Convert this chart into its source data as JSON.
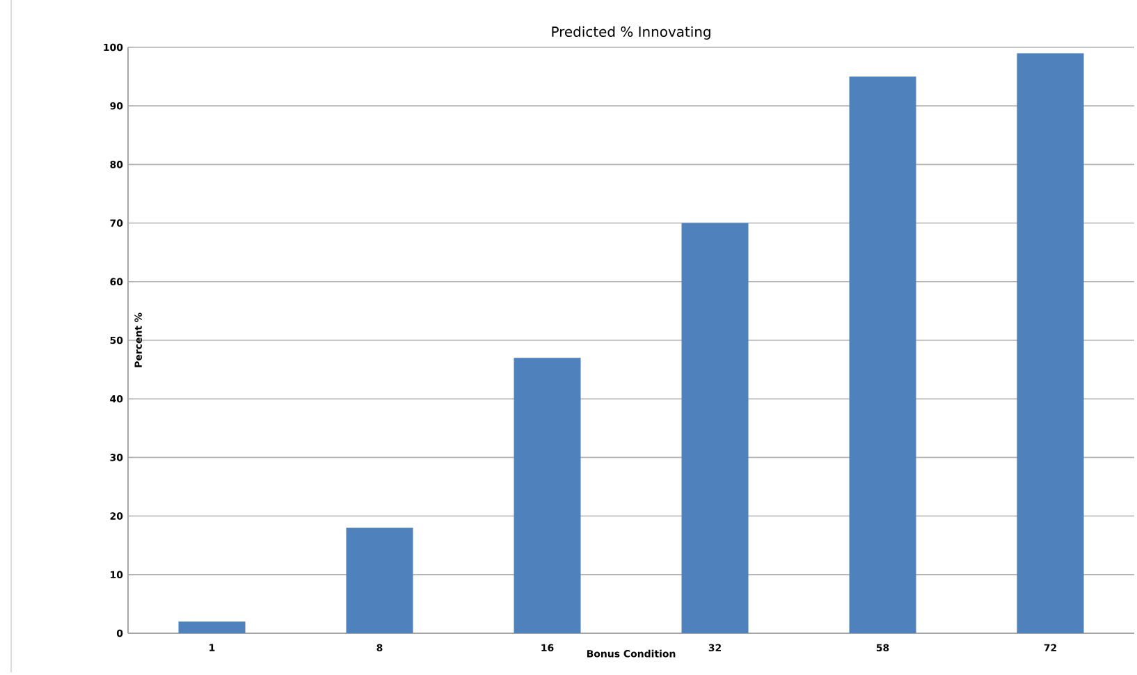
{
  "chart_data": {
    "type": "bar",
    "title": "Predicted % Innovating",
    "xlabel": "Bonus Condition",
    "ylabel": "Percent %",
    "categories": [
      "1",
      "8",
      "16",
      "32",
      "58",
      "72"
    ],
    "values": [
      2,
      18,
      47,
      70,
      95,
      99
    ],
    "color": "#4f81bd",
    "ylim": [
      0,
      100
    ],
    "yticks": [
      0,
      10,
      20,
      30,
      40,
      50,
      60,
      70,
      80,
      90,
      100
    ],
    "grid": "y"
  }
}
